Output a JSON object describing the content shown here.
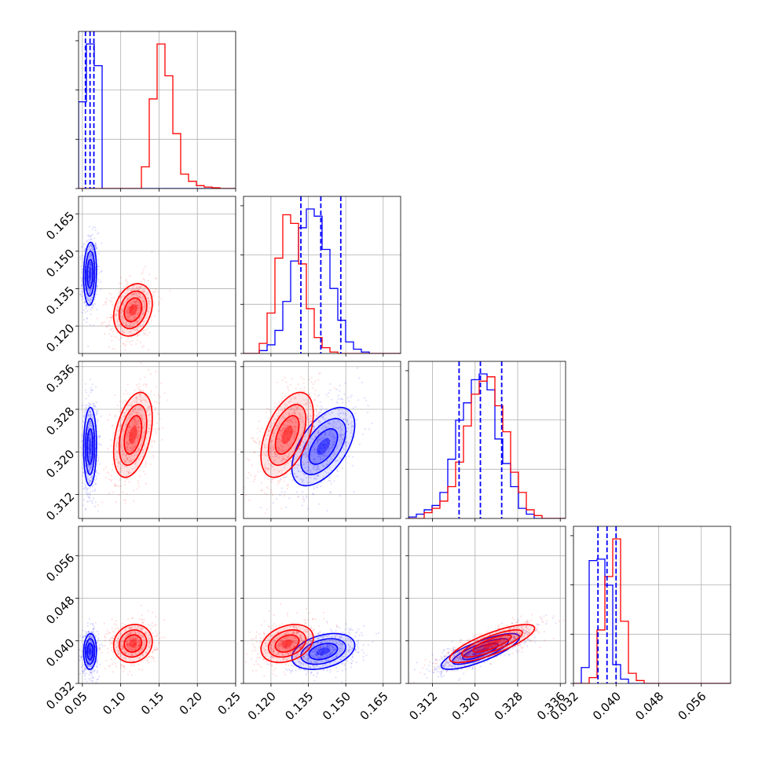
{
  "colors": {
    "series_a": "#0000ff",
    "series_b": "#ff0000",
    "grid": "#b0b0b0",
    "frame": "#000000"
  },
  "chart_data": {
    "type": "corner",
    "grid": true,
    "parameters": [
      {
        "index": 0,
        "range": [
          0.045,
          0.25
        ],
        "ticks": [
          "0.05",
          "0.10",
          "0.15",
          "0.20",
          "0.25"
        ],
        "tick_values": [
          0.05,
          0.1,
          0.15,
          0.2,
          0.25
        ]
      },
      {
        "index": 1,
        "range": [
          0.109,
          0.172
        ],
        "ticks": [
          "0.120",
          "0.135",
          "0.150",
          "0.165"
        ],
        "tick_values": [
          0.12,
          0.135,
          0.15,
          0.165
        ]
      },
      {
        "index": 2,
        "range": [
          0.3075,
          0.337
        ],
        "ticks": [
          "0.312",
          "0.320",
          "0.328",
          "0.336"
        ],
        "tick_values": [
          0.312,
          0.32,
          0.328,
          0.336
        ]
      },
      {
        "index": 3,
        "range": [
          0.032,
          0.0615
        ],
        "ticks": [
          "0.032",
          "0.040",
          "0.048",
          "0.056"
        ],
        "tick_values": [
          0.032,
          0.04,
          0.048,
          0.056
        ]
      }
    ],
    "series": [
      {
        "color": "blue",
        "mean": [
          0.06,
          0.141,
          0.321,
          0.038
        ],
        "sd": [
          0.004,
          0.006,
          0.0035,
          0.0016
        ],
        "quantile_lines": [
          [
            0.054,
            0.06,
            0.065
          ],
          [
            0.132,
            0.14,
            0.148
          ],
          [
            0.317,
            0.321,
            0.325
          ],
          [
            0.0366,
            0.0383,
            0.04
          ]
        ],
        "hist": [
          [
            0.6,
            1.0,
            0.85,
            0.0,
            0.0,
            0.0,
            0.0,
            0.0,
            0.0,
            0.0,
            0.0,
            0.0,
            0.0,
            0.0,
            0.0,
            0.0,
            0.0,
            0.0,
            0.0,
            0.0
          ],
          [
            0.0,
            0.0,
            0.02,
            0.06,
            0.16,
            0.36,
            0.64,
            0.87,
            1.0,
            0.95,
            0.72,
            0.45,
            0.23,
            0.08,
            0.03,
            0.01,
            0.0,
            0.0,
            0.0,
            0.0
          ],
          [
            0.01,
            0.03,
            0.06,
            0.09,
            0.18,
            0.41,
            0.68,
            0.8,
            0.96,
            1.0,
            0.89,
            0.55,
            0.38,
            0.22,
            0.07,
            0.03,
            0.0,
            0.0,
            0.0,
            0.0
          ],
          [
            0.0,
            0.11,
            0.85,
            0.86,
            0.68,
            0.13,
            0.03,
            0.0,
            0.0,
            0.0,
            0.0,
            0.0,
            0.0,
            0.0,
            0.0,
            0.0,
            0.0,
            0.0,
            0.0,
            0.0
          ]
        ]
      },
      {
        "color": "red",
        "mean": [
          0.116,
          0.1265,
          0.3232,
          0.0395
        ],
        "sd": [
          0.012,
          0.005,
          0.0038,
          0.0017
        ],
        "hist": [
          [
            0.0,
            0.0,
            0.0,
            0.0,
            0.0,
            0.0,
            0.0,
            0.0,
            0.15,
            0.62,
            1.0,
            0.78,
            0.38,
            0.1,
            0.05,
            0.02,
            0.01,
            0.005,
            0.0,
            0.0
          ],
          [
            0.0,
            0.0,
            0.07,
            0.28,
            0.66,
            0.96,
            0.9,
            0.62,
            0.31,
            0.11,
            0.04,
            0.01,
            0.0,
            0.0,
            0.0,
            0.0,
            0.0,
            0.0,
            0.0,
            0.0
          ],
          [
            0.0,
            0.0,
            0.04,
            0.07,
            0.12,
            0.22,
            0.39,
            0.64,
            0.86,
            0.95,
            0.98,
            0.78,
            0.6,
            0.32,
            0.18,
            0.06,
            0.02,
            0.0,
            0.0,
            0.0
          ],
          [
            0.0,
            0.0,
            0.04,
            0.37,
            0.74,
            1.0,
            0.43,
            0.07,
            0.02,
            0.0,
            0.0,
            0.0,
            0.0,
            0.0,
            0.0,
            0.0,
            0.0,
            0.0,
            0.0,
            0.0
          ]
        ]
      }
    ]
  }
}
